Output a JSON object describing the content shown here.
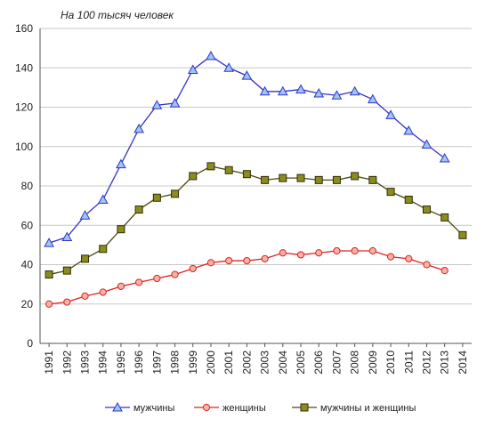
{
  "chart_data": {
    "type": "line",
    "subtitle": "На 100 тысяч человек",
    "xlabel": "",
    "ylabel": "",
    "ylim": [
      0,
      160
    ],
    "yticks": [
      0,
      20,
      40,
      60,
      80,
      100,
      120,
      140,
      160
    ],
    "grid": "horizontal",
    "legend_position": "bottom",
    "categories": [
      "1991",
      "1992",
      "1993",
      "1994",
      "1995",
      "1996",
      "1997",
      "1998",
      "1999",
      "2000",
      "2001",
      "2002",
      "2003",
      "2004",
      "2005",
      "2006",
      "2007",
      "2008",
      "2009",
      "2010",
      "2011",
      "2012",
      "2013",
      "2014"
    ],
    "series": [
      {
        "name": "мужчины",
        "color": "#3333cc",
        "fill": "#9fc6ef",
        "marker": "triangle",
        "values": [
          51,
          54,
          65,
          73,
          91,
          109,
          121,
          122,
          139,
          146,
          140,
          136,
          128,
          128,
          129,
          127,
          126,
          128,
          124,
          116,
          108,
          101,
          94,
          null
        ]
      },
      {
        "name": "женщины",
        "color": "#e02020",
        "fill": "#f6b3a6",
        "marker": "circle",
        "values": [
          20,
          21,
          24,
          26,
          29,
          31,
          33,
          35,
          38,
          41,
          42,
          42,
          43,
          46,
          45,
          46,
          47,
          47,
          47,
          44,
          43,
          40,
          37,
          null
        ]
      },
      {
        "name": "мужчины и женщины",
        "color": "#4a4a12",
        "fill": "#8c8c1e",
        "marker": "square",
        "values": [
          35,
          37,
          43,
          48,
          58,
          68,
          74,
          76,
          85,
          90,
          88,
          86,
          83,
          84,
          84,
          83,
          83,
          85,
          83,
          77,
          73,
          68,
          64,
          55
        ]
      }
    ]
  }
}
